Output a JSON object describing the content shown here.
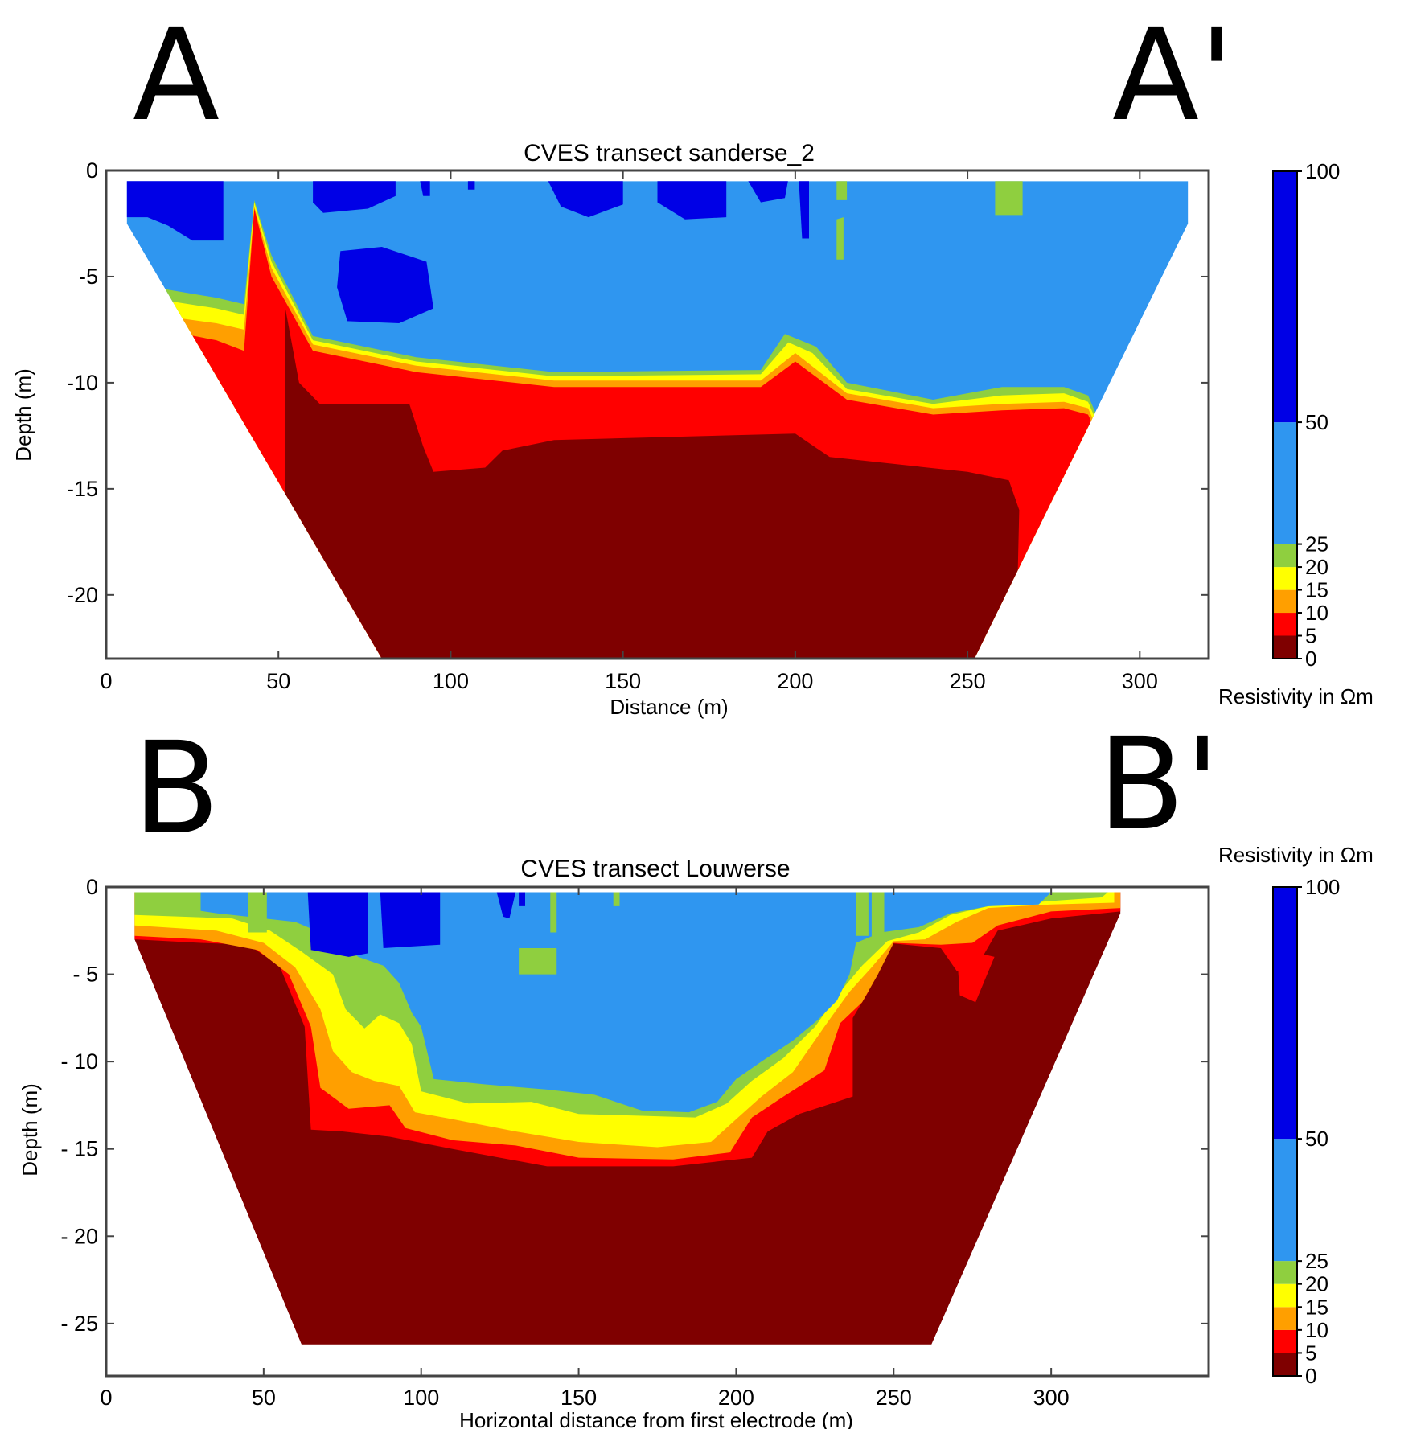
{
  "colors": {
    "r0_5": "#7f0000",
    "r5_10": "#ff0000",
    "r10_15": "#ff9f00",
    "r15_20": "#ffff00",
    "r20_25": "#8fcf3f",
    "r25_50": "#2f96f0",
    "r50_100": "#0000e6"
  },
  "chart_data": [
    {
      "type": "heatmap",
      "panel_label": "A",
      "panel_label_end": "A'",
      "title": "CVES transect sanderse_2",
      "xlabel": "Distance (m)",
      "ylabel": "Depth (m)",
      "xlim": [
        0,
        320
      ],
      "ylim": [
        -23,
        0
      ],
      "xticks": [
        "0",
        "50",
        "100",
        "150",
        "200",
        "250",
        "300"
      ],
      "xtick_values": [
        0,
        50,
        100,
        150,
        200,
        250,
        300
      ],
      "yticks": [
        "0",
        "-5",
        "-10",
        "-15",
        "-20"
      ],
      "ytick_values": [
        0,
        -5,
        -10,
        -15,
        -20
      ],
      "colorbar": {
        "label": "Resistivity in Ωm",
        "ticks": [
          "0",
          "5",
          "10",
          "15",
          "20",
          "25",
          "50",
          "100"
        ],
        "classes": [
          [
            0,
            5
          ],
          [
            5,
            10
          ],
          [
            10,
            15
          ],
          [
            15,
            20
          ],
          [
            20,
            25
          ],
          [
            25,
            50
          ],
          [
            50,
            100
          ]
        ]
      },
      "section_outline": [
        [
          6,
          -0.5
        ],
        [
          314,
          -0.5
        ],
        [
          314,
          -2.5
        ],
        [
          252,
          -23
        ],
        [
          80,
          -23
        ],
        [
          6,
          -2.5
        ]
      ],
      "layers": [
        {
          "name": "5–10 Ωm",
          "color_key": "r5_10",
          "top": [
            [
              16,
              -7.5
            ],
            [
              32,
              -8
            ],
            [
              40,
              -8.5
            ],
            [
              43,
              -1.8
            ],
            [
              48,
              -5
            ],
            [
              60,
              -8.5
            ],
            [
              90,
              -9.5
            ],
            [
              130,
              -10.2
            ],
            [
              190,
              -10.2
            ],
            [
              200,
              -9
            ],
            [
              215,
              -10.8
            ],
            [
              240,
              -11.5
            ],
            [
              260,
              -11.3
            ],
            [
              278,
              -11.2
            ],
            [
              285,
              -11.5
            ]
          ]
        },
        {
          "name": "10–15 Ωm",
          "color_key": "r10_15",
          "top": [
            [
              14,
              -6.8
            ],
            [
              32,
              -7.2
            ],
            [
              40,
              -7.5
            ],
            [
              43,
              -1.7
            ],
            [
              48,
              -4.6
            ],
            [
              60,
              -8.2
            ],
            [
              90,
              -9.2
            ],
            [
              130,
              -9.9
            ],
            [
              190,
              -9.9
            ],
            [
              200,
              -8.6
            ],
            [
              215,
              -10.5
            ],
            [
              240,
              -11.2
            ],
            [
              260,
              -11
            ],
            [
              278,
              -10.9
            ],
            [
              285,
              -11.2
            ]
          ]
        },
        {
          "name": "15–20 Ωm",
          "color_key": "r15_20",
          "top": [
            [
              12,
              -6
            ],
            [
              32,
              -6.5
            ],
            [
              40,
              -6.8
            ],
            [
              43,
              -1.5
            ],
            [
              48,
              -4.3
            ],
            [
              60,
              -8
            ],
            [
              90,
              -9
            ],
            [
              130,
              -9.7
            ],
            [
              190,
              -9.6
            ],
            [
              198,
              -8.1
            ],
            [
              205,
              -8.6
            ],
            [
              215,
              -10.3
            ],
            [
              240,
              -11
            ],
            [
              260,
              -10.6
            ],
            [
              278,
              -10.5
            ],
            [
              285,
              -10.9
            ]
          ]
        },
        {
          "name": "20–25 Ωm",
          "color_key": "r20_25",
          "top": [
            [
              10,
              -5.4
            ],
            [
              32,
              -6
            ],
            [
              40,
              -6.3
            ],
            [
              43,
              -1.4
            ],
            [
              48,
              -4
            ],
            [
              60,
              -7.8
            ],
            [
              90,
              -8.8
            ],
            [
              130,
              -9.5
            ],
            [
              190,
              -9.4
            ],
            [
              197,
              -7.7
            ],
            [
              206,
              -8.3
            ],
            [
              215,
              -10
            ],
            [
              240,
              -10.8
            ],
            [
              260,
              -10.2
            ],
            [
              278,
              -10.2
            ],
            [
              285,
              -10.6
            ]
          ]
        },
        {
          "name": "0–5 Ωm",
          "color_key": "r0_5",
          "top": [
            [
              52,
              -6.5
            ],
            [
              56,
              -10
            ],
            [
              62,
              -11
            ],
            [
              88,
              -11
            ],
            [
              92,
              -13
            ],
            [
              95,
              -14.2
            ],
            [
              110,
              -14
            ],
            [
              115,
              -13.2
            ],
            [
              130,
              -12.7
            ],
            [
              200,
              -12.4
            ],
            [
              210,
              -13.5
            ],
            [
              250,
              -14.2
            ],
            [
              262,
              -14.6
            ],
            [
              265,
              -16
            ],
            [
              264,
              -23
            ]
          ]
        }
      ],
      "patches": [
        {
          "value_class": "50–100 Ωm",
          "color_key": "r50_100"
        },
        {
          "value_class": "20–25 Ωm",
          "color_key": "r20_25"
        }
      ]
    },
    {
      "type": "heatmap",
      "panel_label": "B",
      "panel_label_end": "B'",
      "title": "CVES transect Louwerse",
      "xlabel": "Horizontal distance from first electrode (m)",
      "ylabel": "Depth (m)",
      "xlim": [
        0,
        350
      ],
      "ylim": [
        -28,
        0
      ],
      "xticks": [
        "0",
        "50",
        "100",
        "150",
        "200",
        "250",
        "300"
      ],
      "xtick_values": [
        0,
        50,
        100,
        150,
        200,
        250,
        300
      ],
      "yticks": [
        "0",
        "- 5",
        "- 10",
        "- 15",
        "- 20",
        "- 25"
      ],
      "ytick_values": [
        0,
        -5,
        -10,
        -15,
        -20,
        -25
      ],
      "colorbar": {
        "label": "Resistivity in Ωm",
        "top_label": "100",
        "ticks": [
          "0",
          "5",
          "10",
          "15",
          "20",
          "25",
          "50",
          "100"
        ],
        "classes": [
          [
            0,
            5
          ],
          [
            5,
            10
          ],
          [
            10,
            15
          ],
          [
            15,
            20
          ],
          [
            20,
            25
          ],
          [
            25,
            50
          ],
          [
            50,
            100
          ]
        ]
      },
      "section_outline": [
        [
          9,
          -0.3
        ],
        [
          322,
          -0.3
        ],
        [
          322,
          -1.5
        ],
        [
          262,
          -26.2
        ],
        [
          62,
          -26.2
        ],
        [
          9,
          -3
        ]
      ],
      "layers": [
        {
          "name": "0–5 Ωm",
          "color_key": "r0_5",
          "shape": "bowl"
        },
        {
          "name": "5–10 Ωm",
          "color_key": "r5_10",
          "shape": "bowl"
        },
        {
          "name": "10–15 Ωm",
          "color_key": "r10_15",
          "shape": "bowl"
        },
        {
          "name": "15–20 Ωm",
          "color_key": "r15_20",
          "shape": "bowl"
        },
        {
          "name": "20–25 Ωm",
          "color_key": "r20_25",
          "shape": "bowl"
        },
        {
          "name": "25–50 Ωm",
          "color_key": "r25_50",
          "shape": "bowl"
        }
      ],
      "patches": [
        {
          "value_class": "50–100 Ωm",
          "color_key": "r50_100"
        },
        {
          "value_class": "20–25 Ωm",
          "color_key": "r20_25"
        }
      ]
    }
  ]
}
